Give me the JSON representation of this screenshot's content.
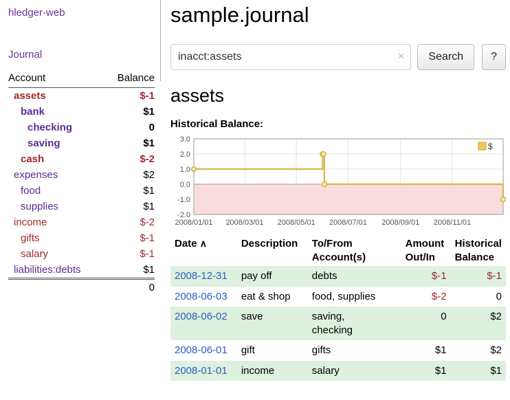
{
  "app": {
    "title": "hledger-web"
  },
  "sidebar": {
    "journal_link": "Journal",
    "accounts": {
      "header_account": "Account",
      "header_balance": "Balance",
      "rows": [
        {
          "name": "assets",
          "indent": 0,
          "balance": "$-1",
          "bold": true,
          "negative": true
        },
        {
          "name": "bank",
          "indent": 1,
          "balance": "$1",
          "bold": true,
          "negative": false
        },
        {
          "name": "checking",
          "indent": 2,
          "balance": "0",
          "bold": true,
          "negative": false
        },
        {
          "name": "saving",
          "indent": 2,
          "balance": "$1",
          "bold": true,
          "negative": false
        },
        {
          "name": "cash",
          "indent": 1,
          "balance": "$-2",
          "bold": true,
          "negative": true
        },
        {
          "name": "expenses",
          "indent": 0,
          "balance": "$2",
          "bold": false,
          "negative": false
        },
        {
          "name": "food",
          "indent": 1,
          "balance": "$1",
          "bold": false,
          "negative": false
        },
        {
          "name": "supplies",
          "indent": 1,
          "balance": "$1",
          "bold": false,
          "negative": false
        },
        {
          "name": "income",
          "indent": 0,
          "balance": "$-2",
          "bold": false,
          "negative": true
        },
        {
          "name": "gifts",
          "indent": 1,
          "balance": "$-1",
          "bold": false,
          "negative": true
        },
        {
          "name": "salary",
          "indent": 1,
          "balance": "$-1",
          "bold": false,
          "negative": true
        },
        {
          "name": "liabilities:debts",
          "indent": 0,
          "balance": "$1",
          "bold": false,
          "negative": false
        }
      ],
      "total": "0"
    }
  },
  "main": {
    "title": "sample.journal",
    "search": {
      "value": "inacct:assets",
      "clear_icon": "×",
      "button_label": "Search",
      "help_label": "?"
    },
    "account_heading": "assets",
    "chart_label": "Historical Balance:",
    "register": {
      "headers": {
        "date": "Date",
        "sort_icon": "∧",
        "description": "Description",
        "tofrom": "To/From\nAccount(s)",
        "amount": "Amount\nOut/In",
        "balance": "Historical\nBalance"
      },
      "rows": [
        {
          "date": "2008-12-31",
          "description": "pay off",
          "tofrom": "debts",
          "amount": "$-1",
          "amount_negative": true,
          "balance": "$-1",
          "balance_negative": true
        },
        {
          "date": "2008-06-03",
          "description": "eat & shop",
          "tofrom": "food, supplies",
          "amount": "$-2",
          "amount_negative": true,
          "balance": "0",
          "balance_negative": false
        },
        {
          "date": "2008-06-02",
          "description": "save",
          "tofrom": "saving,\nchecking",
          "amount": "0",
          "amount_negative": false,
          "balance": "$2",
          "balance_negative": false
        },
        {
          "date": "2008-06-01",
          "description": "gift",
          "tofrom": "gifts",
          "amount": "$1",
          "amount_negative": false,
          "balance": "$2",
          "balance_negative": false
        },
        {
          "date": "2008-01-01",
          "description": "income",
          "tofrom": "salary",
          "amount": "$1",
          "amount_negative": false,
          "balance": "$1",
          "balance_negative": false
        }
      ]
    }
  },
  "chart_data": {
    "type": "line",
    "title": "Historical Balance:",
    "step": true,
    "series": [
      {
        "name": "$",
        "points": [
          [
            "2008-01-01",
            1
          ],
          [
            "2008-06-01",
            2
          ],
          [
            "2008-06-02",
            2
          ],
          [
            "2008-06-03",
            0
          ],
          [
            "2008-12-31",
            -1
          ]
        ]
      }
    ],
    "x_range": [
      "2008-01-01",
      "2008-12-31"
    ],
    "ylim": [
      -2.0,
      3.0
    ],
    "yticks": [
      3.0,
      2.0,
      1.0,
      0.0,
      -1.0,
      -2.0
    ],
    "xticks": [
      {
        "label": "2008/01/01",
        "date": "2008-01-01"
      },
      {
        "label": "2008/03/01",
        "date": "2008-03-01"
      },
      {
        "label": "2008/05/01",
        "date": "2008-05-01"
      },
      {
        "label": "2008/07/01",
        "date": "2008-07-01"
      },
      {
        "label": "2008/09/01",
        "date": "2008-09-01"
      },
      {
        "label": "2008/11/01",
        "date": "2008-11-01"
      }
    ],
    "legend": {
      "label": "$",
      "position": "top-right"
    },
    "colors": {
      "line": "#d9b64a",
      "marker_fill": "#f6ecc4",
      "negative_region": "#fbdcdc",
      "grid": "#e3e3e3",
      "zero_line": "#999999",
      "border": "#999999",
      "legend_fill": "#ecca5a",
      "legend_border": "#c9a52f"
    }
  },
  "colors": {
    "link_purple": "#663399",
    "account_purple": "#5c2d91",
    "negative_red": "#a3282d",
    "date_blue": "#2a5fc4",
    "row_green": "#def0de"
  }
}
